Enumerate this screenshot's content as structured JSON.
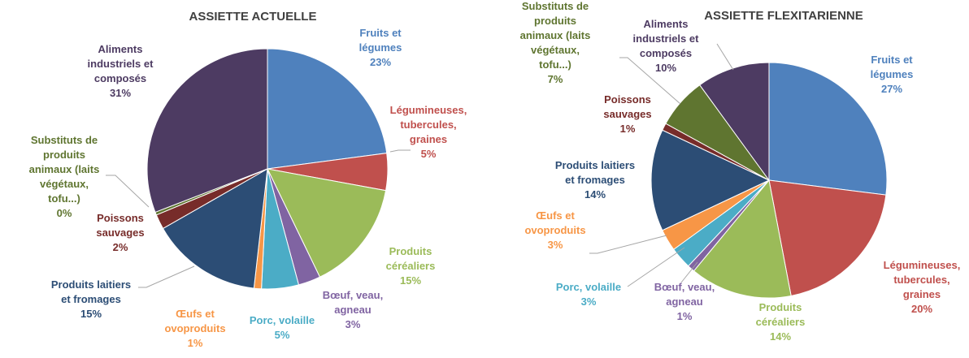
{
  "chart_data": [
    {
      "type": "pie",
      "title": "ASSIETTE ACTUELLE",
      "slices": [
        {
          "label": [
            "Fruits et",
            "légumes"
          ],
          "value": 23,
          "value_label": "23%",
          "color": "#4f81bd"
        },
        {
          "label": [
            "Légumineuses,",
            "tubercules,",
            "graines"
          ],
          "value": 5,
          "value_label": "5%",
          "color": "#c0504d"
        },
        {
          "label": [
            "Produits",
            "céréaliers"
          ],
          "value": 15,
          "value_label": "15%",
          "color": "#9bbb59"
        },
        {
          "label": [
            "Bœuf, veau,",
            "agneau"
          ],
          "value": 3,
          "value_label": "3%",
          "color": "#8064a2"
        },
        {
          "label": [
            "Porc, volaille"
          ],
          "value": 5,
          "value_label": "5%",
          "color": "#4bacc6"
        },
        {
          "label": [
            "Œufs et",
            "ovoproduits"
          ],
          "value": 1,
          "value_label": "1%",
          "color": "#f79646"
        },
        {
          "label": [
            "Produits laitiers",
            "et fromages"
          ],
          "value": 15,
          "value_label": "15%",
          "color": "#2c4d75"
        },
        {
          "label": [
            "Poissons",
            "sauvages"
          ],
          "value": 2,
          "value_label": "2%",
          "color": "#772c2a"
        },
        {
          "label": [
            "Substituts de",
            "produits",
            "animaux (laits",
            "végétaux,",
            "tofu...)"
          ],
          "value": 0.4,
          "value_label": "0%",
          "color": "#5f7530"
        },
        {
          "label": [
            "Aliments",
            "industriels et",
            "composés"
          ],
          "value": 31,
          "value_label": "31%",
          "color": "#4d3b62"
        }
      ]
    },
    {
      "type": "pie",
      "title": "ASSIETTE FLEXITARIENNE",
      "slices": [
        {
          "label": [
            "Fruits et",
            "légumes"
          ],
          "value": 27,
          "value_label": "27%",
          "color": "#4f81bd"
        },
        {
          "label": [
            "Légumineuses,",
            "tubercules,",
            "graines"
          ],
          "value": 20,
          "value_label": "20%",
          "color": "#c0504d"
        },
        {
          "label": [
            "Produits",
            "céréaliers"
          ],
          "value": 14,
          "value_label": "14%",
          "color": "#9bbb59"
        },
        {
          "label": [
            "Bœuf, veau,",
            "agneau"
          ],
          "value": 1,
          "value_label": "1%",
          "color": "#8064a2"
        },
        {
          "label": [
            "Porc, volaille"
          ],
          "value": 3,
          "value_label": "3%",
          "color": "#4bacc6"
        },
        {
          "label": [
            "Œufs et",
            "ovoproduits"
          ],
          "value": 3,
          "value_label": "3%",
          "color": "#f79646"
        },
        {
          "label": [
            "Produits laitiers",
            "et fromages"
          ],
          "value": 14,
          "value_label": "14%",
          "color": "#2c4d75"
        },
        {
          "label": [
            "Poissons",
            "sauvages"
          ],
          "value": 1,
          "value_label": "1%",
          "color": "#772c2a"
        },
        {
          "label": [
            "Substituts de",
            "produits",
            "animaux (laits",
            "végétaux,",
            "tofu...)"
          ],
          "value": 7,
          "value_label": "7%",
          "color": "#5f7530"
        },
        {
          "label": [
            "Aliments",
            "industriels et",
            "composés"
          ],
          "value": 10,
          "value_label": "10%",
          "color": "#4d3b62"
        }
      ]
    }
  ]
}
